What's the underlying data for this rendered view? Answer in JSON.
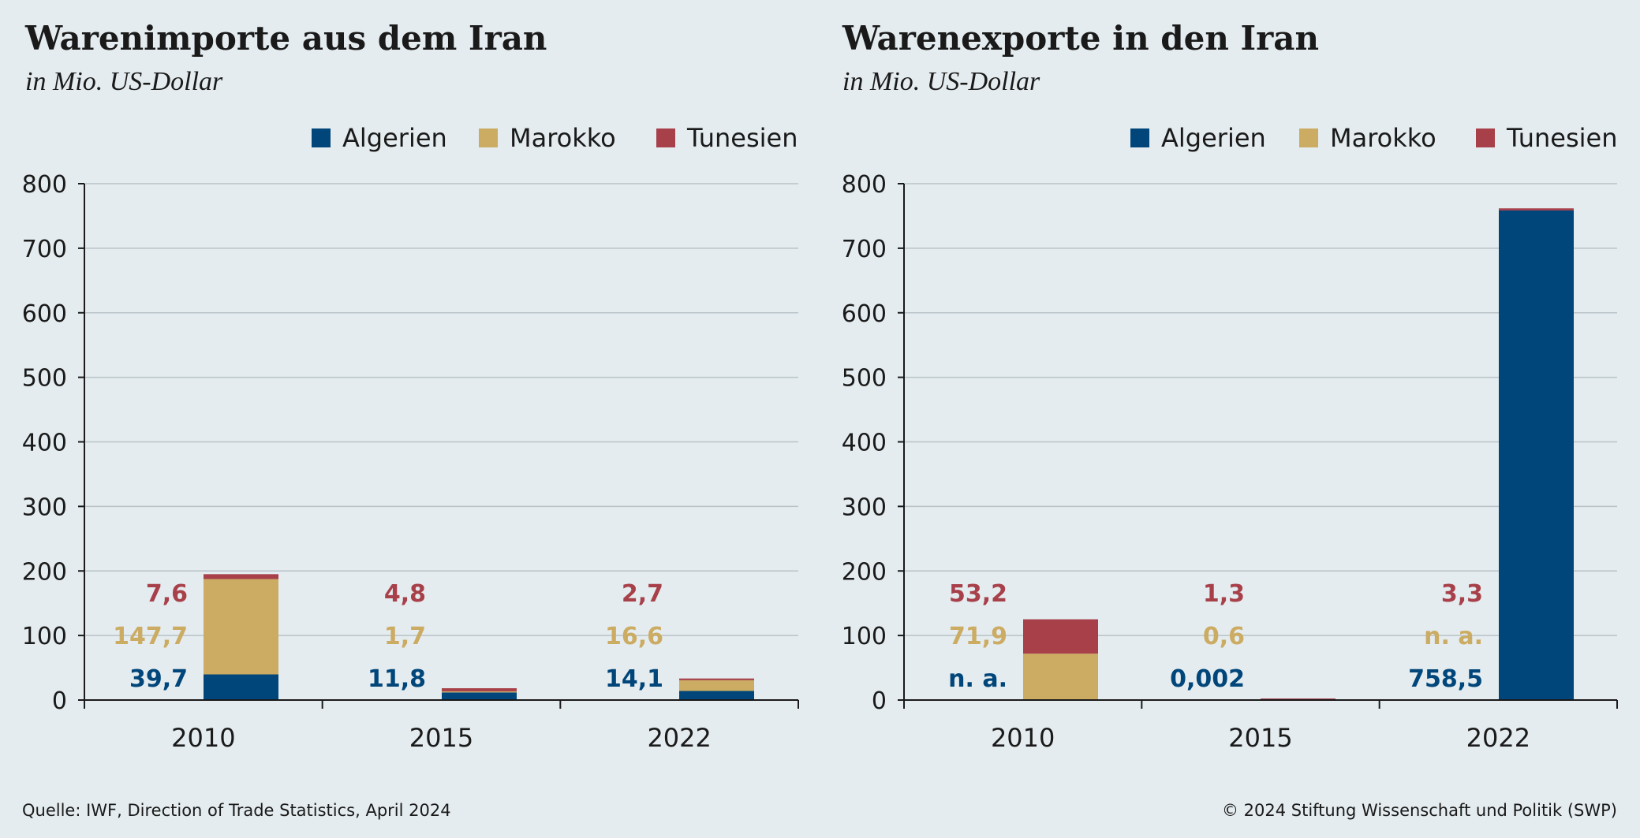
{
  "colors": {
    "Algerien": "#00467a",
    "Marokko": "#ccab62",
    "Tunesien": "#a8404a"
  },
  "footer": {
    "source": "Quelle: IWF, Direction of Trade Statistics, April 2024",
    "copyright": "© 2024 Stiftung Wissenschaft und Politik (SWP)"
  },
  "chart_data": [
    {
      "type": "bar",
      "stacked": true,
      "title": "Warenimporte aus dem Iran",
      "subtitle": "in Mio. US-Dollar",
      "categories": [
        "2010",
        "2015",
        "2022"
      ],
      "ylim": [
        0,
        800
      ],
      "yticks": [
        0,
        100,
        200,
        300,
        400,
        500,
        600,
        700,
        800
      ],
      "grid": true,
      "legend_position": "top-right",
      "series": [
        {
          "name": "Algerien",
          "values": [
            39.7,
            11.8,
            14.1
          ],
          "labels": [
            "39,7",
            "11,8",
            "14,1"
          ]
        },
        {
          "name": "Marokko",
          "values": [
            147.7,
            1.7,
            16.6
          ],
          "labels": [
            "147,7",
            "1,7",
            "16,6"
          ]
        },
        {
          "name": "Tunesien",
          "values": [
            7.6,
            4.8,
            2.7
          ],
          "labels": [
            "7,6",
            "4,8",
            "2,7"
          ]
        }
      ]
    },
    {
      "type": "bar",
      "stacked": true,
      "title": "Warenexporte in den Iran",
      "subtitle": "in Mio. US-Dollar",
      "categories": [
        "2010",
        "2015",
        "2022"
      ],
      "ylim": [
        0,
        800
      ],
      "yticks": [
        0,
        100,
        200,
        300,
        400,
        500,
        600,
        700,
        800
      ],
      "grid": true,
      "legend_position": "top-right",
      "series": [
        {
          "name": "Algerien",
          "values": [
            null,
            0.002,
            758.5
          ],
          "labels": [
            "n. a.",
            "0,002",
            "758,5"
          ]
        },
        {
          "name": "Marokko",
          "values": [
            71.9,
            0.6,
            null
          ],
          "labels": [
            "71,9",
            "0,6",
            "n. a."
          ]
        },
        {
          "name": "Tunesien",
          "values": [
            53.2,
            1.3,
            3.3
          ],
          "labels": [
            "53,2",
            "1,3",
            "3,3"
          ]
        }
      ]
    }
  ]
}
